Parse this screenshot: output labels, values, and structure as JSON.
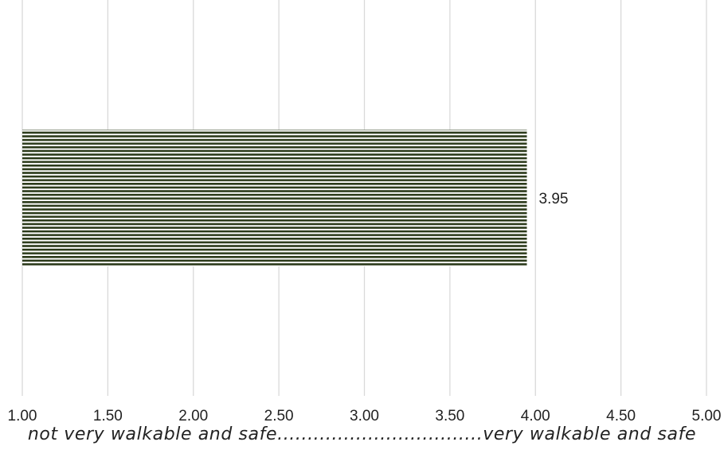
{
  "chart_data": {
    "type": "bar",
    "orientation": "horizontal",
    "categories": [
      ""
    ],
    "values": [
      3.95
    ],
    "data_labels": [
      "3.95"
    ],
    "xlim": [
      1.0,
      5.0
    ],
    "x_ticks": [
      1.0,
      1.5,
      2.0,
      2.5,
      3.0,
      3.5,
      4.0,
      4.5,
      5.0
    ],
    "x_tick_labels": [
      "1.00",
      "1.50",
      "2.00",
      "2.50",
      "3.00",
      "3.50",
      "4.00",
      "4.50",
      "5.00"
    ],
    "xlabel": "not very walkable and safe..................................very walkable and safe",
    "ylabel": "",
    "title": "",
    "grid": "vertical",
    "bar_fill": "horizontal-stripes",
    "colors": {
      "bar_stripe": "#2b3a1a",
      "bar_gap": "#ffffff",
      "grid": "#d9d9d9"
    }
  }
}
